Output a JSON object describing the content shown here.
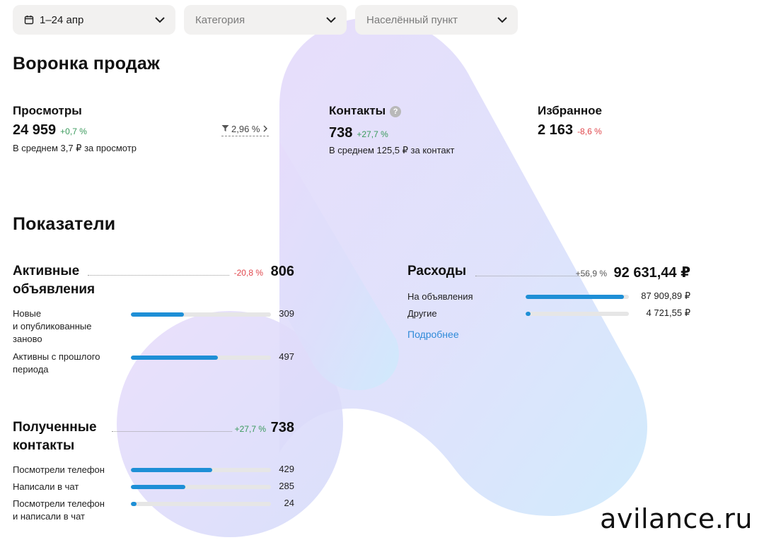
{
  "filters": {
    "date_label": "1–24 апр",
    "category_placeholder": "Категория",
    "city_placeholder": "Населённый пункт"
  },
  "funnel": {
    "title": "Воронка продаж",
    "views": {
      "label": "Просмотры",
      "value": "24 959",
      "delta": "+0,7 %",
      "sub": "В среднем 3,7 ₽ за просмотр",
      "conversion": "2,96 %"
    },
    "contacts": {
      "label": "Контакты",
      "value": "738",
      "delta": "+27,7 %",
      "sub": "В среднем 125,5 ₽ за контакт",
      "help": "?"
    },
    "favorites": {
      "label": "Избранное",
      "value": "2 163",
      "delta": "-8,6 %"
    }
  },
  "indicators": {
    "title": "Показатели",
    "active_ads": {
      "title_line1": "Активные",
      "title_line2": "объявления",
      "delta": "-20,8 %",
      "value": "806",
      "rows": [
        {
          "label_lines": [
            "Новые",
            "и опубликованные",
            "заново"
          ],
          "value": "309",
          "fraction": 0.38
        },
        {
          "label_lines": [
            "Активны с прошлого",
            "периода"
          ],
          "value": "497",
          "fraction": 0.62
        }
      ]
    },
    "contacts_received": {
      "title_line1": "Полученные",
      "title_line2": "контакты",
      "delta": "+27,7 %",
      "value": "738",
      "rows": [
        {
          "label_lines": [
            "Посмотрели телефон"
          ],
          "value": "429",
          "fraction": 0.58
        },
        {
          "label_lines": [
            "Написали в чат"
          ],
          "value": "285",
          "fraction": 0.39
        },
        {
          "label_lines": [
            "Посмотрели телефон",
            "и написали в чат"
          ],
          "value": "24",
          "fraction": 0.04
        }
      ]
    },
    "expenses": {
      "title": "Расходы",
      "delta": "+56,9 %",
      "value": "92 631,44 ₽",
      "rows": [
        {
          "label": "На объявления",
          "value": "87 909,89 ₽",
          "fraction": 0.95
        },
        {
          "label": "Другие",
          "value": "4 721,55 ₽",
          "fraction": 0.05
        }
      ],
      "more_link": "Подробнее"
    }
  },
  "watermark": "avilance.ru",
  "colors": {
    "accent_blue": "#1e8fd6",
    "positive": "#3a9a5c",
    "negative": "#e0474c",
    "link": "#2f8ad8"
  }
}
